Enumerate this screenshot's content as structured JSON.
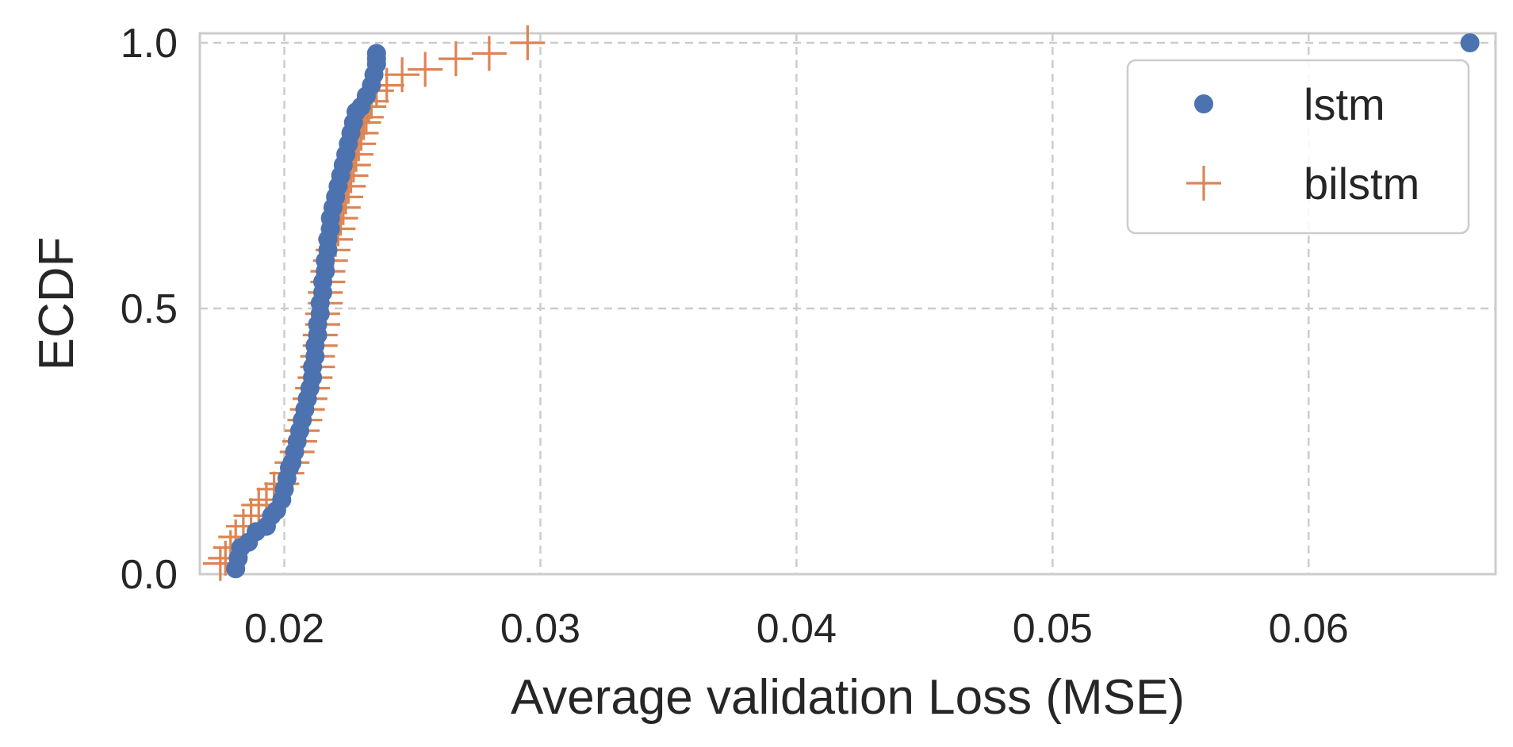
{
  "chart_data": {
    "type": "scatter",
    "title": "",
    "xlabel": "Average validation Loss (MSE)",
    "ylabel": "ECDF",
    "xlim": [
      0.0167,
      0.0673
    ],
    "ylim": [
      0.0,
      1.0
    ],
    "x_ticks": [
      0.02,
      0.03,
      0.04,
      0.05,
      0.06
    ],
    "x_tick_labels": [
      "0.02",
      "0.03",
      "0.04",
      "0.05",
      "0.06"
    ],
    "y_ticks": [
      0.0,
      0.5,
      1.0
    ],
    "y_tick_labels": [
      "0.0",
      "0.5",
      "1.0"
    ],
    "grid": true,
    "grid_style": "dashed",
    "legend_position": "top-right",
    "series": [
      {
        "name": "lstm",
        "marker": "circle",
        "color": "#4c72b0",
        "x": [
          0.0181,
          0.0182,
          0.0183,
          0.0186,
          0.0189,
          0.0193,
          0.0195,
          0.0197,
          0.0199,
          0.02,
          0.0201,
          0.0202,
          0.0203,
          0.0204,
          0.0205,
          0.0206,
          0.0207,
          0.0208,
          0.0209,
          0.021,
          0.0211,
          0.0211,
          0.0212,
          0.0212,
          0.0213,
          0.0213,
          0.0214,
          0.0214,
          0.0215,
          0.0215,
          0.0216,
          0.0216,
          0.0217,
          0.0217,
          0.0218,
          0.0218,
          0.0219,
          0.022,
          0.0221,
          0.0222,
          0.0223,
          0.0224,
          0.0225,
          0.0226,
          0.0227,
          0.0228,
          0.023,
          0.0232,
          0.0234,
          0.0235,
          0.0236,
          0.0236,
          0.0236,
          0.0663
        ],
        "y": [
          0.01,
          0.03,
          0.05,
          0.06,
          0.08,
          0.09,
          0.11,
          0.12,
          0.14,
          0.16,
          0.18,
          0.2,
          0.21,
          0.23,
          0.25,
          0.27,
          0.29,
          0.31,
          0.33,
          0.35,
          0.37,
          0.39,
          0.41,
          0.43,
          0.45,
          0.47,
          0.49,
          0.51,
          0.53,
          0.55,
          0.57,
          0.59,
          0.61,
          0.63,
          0.65,
          0.67,
          0.69,
          0.71,
          0.73,
          0.75,
          0.77,
          0.79,
          0.81,
          0.83,
          0.85,
          0.87,
          0.88,
          0.9,
          0.92,
          0.94,
          0.96,
          0.97,
          0.98,
          1.0
        ]
      },
      {
        "name": "bilstm",
        "marker": "plus",
        "color": "#dd8452",
        "x": [
          0.0175,
          0.0177,
          0.0179,
          0.0181,
          0.0184,
          0.0187,
          0.019,
          0.0193,
          0.0196,
          0.0199,
          0.0201,
          0.0203,
          0.0205,
          0.0206,
          0.0207,
          0.0208,
          0.0209,
          0.021,
          0.0211,
          0.0212,
          0.0213,
          0.0213,
          0.0214,
          0.0214,
          0.0215,
          0.0215,
          0.0216,
          0.0216,
          0.0217,
          0.0217,
          0.0218,
          0.0219,
          0.022,
          0.0221,
          0.0222,
          0.0223,
          0.0224,
          0.0225,
          0.0226,
          0.0227,
          0.0228,
          0.0229,
          0.023,
          0.0231,
          0.0232,
          0.0233,
          0.0234,
          0.0236,
          0.024,
          0.0246,
          0.0255,
          0.0267,
          0.028,
          0.0295
        ],
        "y": [
          0.02,
          0.03,
          0.05,
          0.07,
          0.09,
          0.11,
          0.13,
          0.14,
          0.16,
          0.17,
          0.19,
          0.21,
          0.23,
          0.25,
          0.27,
          0.29,
          0.31,
          0.33,
          0.35,
          0.37,
          0.39,
          0.41,
          0.43,
          0.45,
          0.47,
          0.49,
          0.51,
          0.53,
          0.55,
          0.57,
          0.59,
          0.61,
          0.63,
          0.65,
          0.67,
          0.69,
          0.71,
          0.73,
          0.75,
          0.77,
          0.79,
          0.81,
          0.83,
          0.85,
          0.86,
          0.88,
          0.89,
          0.91,
          0.92,
          0.94,
          0.95,
          0.97,
          0.98,
          1.0
        ]
      }
    ]
  }
}
